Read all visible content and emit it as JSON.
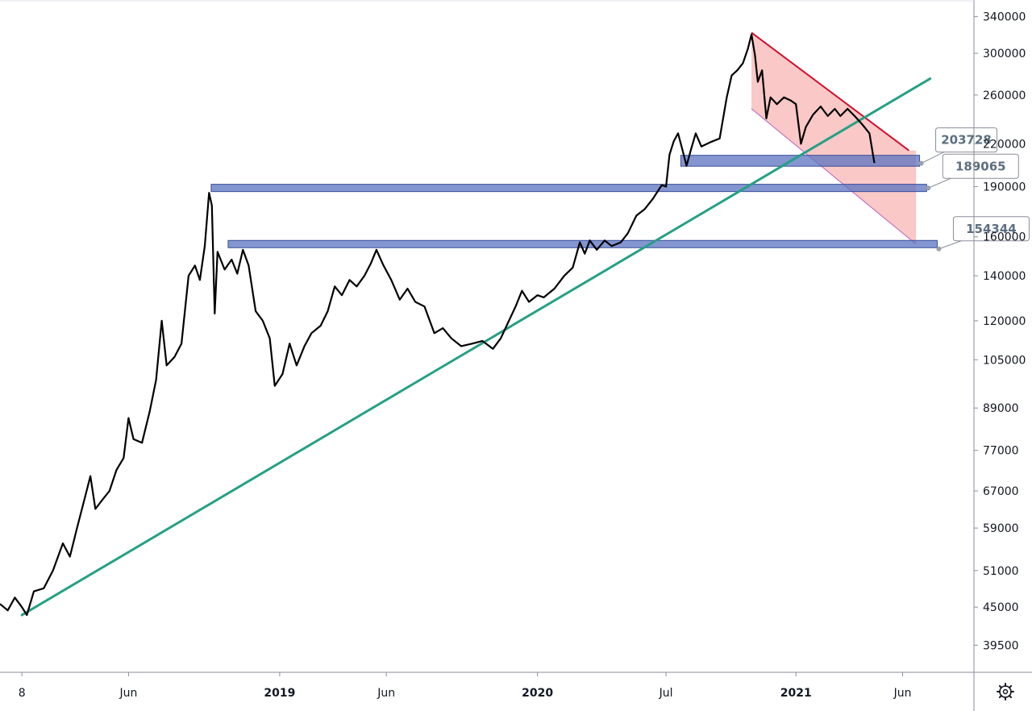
{
  "chart_data": {
    "type": "line",
    "y_scale": "log",
    "ylim": [
      36000,
      360000
    ],
    "y_ticks": [
      340000,
      300000,
      260000,
      220000,
      190000,
      160000,
      140000,
      120000,
      105000,
      89000,
      77000,
      67000,
      59000,
      51000,
      45000,
      39500
    ],
    "x_ticks": [
      {
        "label": "8",
        "date": "2018-01-01",
        "bold": false
      },
      {
        "label": "Jun",
        "date": "2018-06-01",
        "bold": false
      },
      {
        "label": "2019",
        "date": "2019-01-01",
        "bold": true
      },
      {
        "label": "Jun",
        "date": "2019-06-01",
        "bold": false
      },
      {
        "label": "2020",
        "date": "2020-01-01",
        "bold": true
      },
      {
        "label": "Jul",
        "date": "2020-07-01",
        "bold": false
      },
      {
        "label": "2021",
        "date": "2021-01-01",
        "bold": true
      },
      {
        "label": "Jun",
        "date": "2021-06-01",
        "bold": false
      }
    ],
    "grid": false,
    "series": [
      {
        "color": "#000000",
        "points": [
          [
            "2017-12-01",
            45500
          ],
          [
            "2017-12-12",
            44500
          ],
          [
            "2017-12-22",
            46500
          ],
          [
            "2018-01-01",
            45000
          ],
          [
            "2018-01-08",
            43800
          ],
          [
            "2018-01-18",
            47500
          ],
          [
            "2018-02-01",
            48000
          ],
          [
            "2018-02-14",
            51000
          ],
          [
            "2018-02-28",
            56000
          ],
          [
            "2018-03-10",
            53500
          ],
          [
            "2018-03-20",
            59000
          ],
          [
            "2018-04-01",
            66000
          ],
          [
            "2018-04-08",
            70500
          ],
          [
            "2018-04-15",
            63000
          ],
          [
            "2018-04-25",
            65000
          ],
          [
            "2018-05-05",
            67000
          ],
          [
            "2018-05-15",
            72000
          ],
          [
            "2018-05-25",
            75000
          ],
          [
            "2018-06-01",
            86000
          ],
          [
            "2018-06-08",
            80000
          ],
          [
            "2018-06-20",
            79000
          ],
          [
            "2018-07-01",
            88000
          ],
          [
            "2018-07-10",
            98000
          ],
          [
            "2018-07-18",
            120000
          ],
          [
            "2018-07-25",
            103000
          ],
          [
            "2018-08-05",
            106000
          ],
          [
            "2018-08-15",
            111000
          ],
          [
            "2018-08-25",
            140000
          ],
          [
            "2018-09-03",
            145000
          ],
          [
            "2018-09-10",
            138000
          ],
          [
            "2018-09-17",
            155000
          ],
          [
            "2018-09-23",
            186000
          ],
          [
            "2018-09-27",
            178000
          ],
          [
            "2018-10-01",
            123000
          ],
          [
            "2018-10-05",
            152000
          ],
          [
            "2018-10-15",
            143000
          ],
          [
            "2018-10-25",
            148000
          ],
          [
            "2018-11-02",
            141000
          ],
          [
            "2018-11-10",
            153000
          ],
          [
            "2018-11-18",
            145000
          ],
          [
            "2018-11-28",
            124000
          ],
          [
            "2018-12-08",
            120000
          ],
          [
            "2018-12-18",
            113000
          ],
          [
            "2018-12-25",
            96000
          ],
          [
            "2019-01-05",
            100000
          ],
          [
            "2019-01-15",
            111000
          ],
          [
            "2019-01-25",
            103000
          ],
          [
            "2019-02-05",
            110000
          ],
          [
            "2019-02-15",
            115000
          ],
          [
            "2019-02-28",
            118000
          ],
          [
            "2019-03-10",
            124000
          ],
          [
            "2019-03-20",
            135000
          ],
          [
            "2019-03-30",
            131000
          ],
          [
            "2019-04-10",
            138000
          ],
          [
            "2019-04-20",
            135000
          ],
          [
            "2019-05-01",
            140000
          ],
          [
            "2019-05-10",
            146000
          ],
          [
            "2019-05-18",
            153000
          ],
          [
            "2019-05-28",
            145000
          ],
          [
            "2019-06-08",
            138000
          ],
          [
            "2019-06-20",
            129000
          ],
          [
            "2019-07-01",
            134000
          ],
          [
            "2019-07-12",
            128000
          ],
          [
            "2019-07-25",
            126000
          ],
          [
            "2019-08-08",
            115000
          ],
          [
            "2019-08-20",
            117000
          ],
          [
            "2019-09-01",
            113000
          ],
          [
            "2019-09-15",
            110000
          ],
          [
            "2019-10-01",
            111000
          ],
          [
            "2019-10-15",
            112000
          ],
          [
            "2019-10-30",
            109000
          ],
          [
            "2019-11-10",
            113000
          ],
          [
            "2019-11-20",
            119000
          ],
          [
            "2019-12-01",
            126000
          ],
          [
            "2019-12-10",
            133000
          ],
          [
            "2019-12-20",
            128000
          ],
          [
            "2020-01-01",
            131000
          ],
          [
            "2020-01-10",
            130000
          ],
          [
            "2020-01-25",
            134000
          ],
          [
            "2020-02-08",
            140000
          ],
          [
            "2020-02-20",
            144000
          ],
          [
            "2020-03-01",
            157000
          ],
          [
            "2020-03-08",
            151000
          ],
          [
            "2020-03-15",
            158000
          ],
          [
            "2020-03-25",
            153000
          ],
          [
            "2020-04-05",
            158000
          ],
          [
            "2020-04-15",
            155000
          ],
          [
            "2020-04-28",
            157000
          ],
          [
            "2020-05-08",
            162000
          ],
          [
            "2020-05-20",
            172000
          ],
          [
            "2020-06-01",
            176000
          ],
          [
            "2020-06-12",
            182000
          ],
          [
            "2020-06-25",
            191000
          ],
          [
            "2020-07-01",
            190000
          ],
          [
            "2020-07-06",
            212000
          ],
          [
            "2020-07-12",
            222000
          ],
          [
            "2020-07-18",
            228000
          ],
          [
            "2020-07-24",
            216000
          ],
          [
            "2020-07-30",
            204000
          ],
          [
            "2020-08-05",
            215000
          ],
          [
            "2020-08-12",
            228000
          ],
          [
            "2020-08-20",
            218000
          ],
          [
            "2020-09-01",
            221000
          ],
          [
            "2020-09-15",
            224000
          ],
          [
            "2020-09-25",
            258000
          ],
          [
            "2020-10-02",
            278000
          ],
          [
            "2020-10-10",
            283000
          ],
          [
            "2020-10-18",
            290000
          ],
          [
            "2020-10-25",
            305000
          ],
          [
            "2020-10-30",
            320000
          ],
          [
            "2020-11-04",
            298000
          ],
          [
            "2020-11-08",
            272000
          ],
          [
            "2020-11-14",
            283000
          ],
          [
            "2020-11-20",
            240000
          ],
          [
            "2020-11-26",
            258000
          ],
          [
            "2020-12-05",
            252000
          ],
          [
            "2020-12-15",
            258000
          ],
          [
            "2020-12-25",
            255000
          ],
          [
            "2021-01-01",
            252000
          ],
          [
            "2021-01-08",
            220000
          ],
          [
            "2021-01-15",
            233000
          ],
          [
            "2021-01-25",
            243000
          ],
          [
            "2021-02-05",
            250000
          ],
          [
            "2021-02-15",
            242000
          ],
          [
            "2021-02-25",
            248000
          ],
          [
            "2021-03-05",
            242000
          ],
          [
            "2021-03-15",
            248000
          ],
          [
            "2021-03-25",
            242000
          ],
          [
            "2021-04-05",
            235000
          ],
          [
            "2021-04-15",
            228000
          ],
          [
            "2021-04-22",
            206000
          ]
        ]
      }
    ],
    "trendline": {
      "color": "#26a085",
      "from": [
        "2018-01-01",
        43800
      ],
      "to": [
        "2021-07-10",
        275000
      ]
    },
    "channel": {
      "color": "#ef5350",
      "upper": {
        "from": [
          "2020-10-30",
          322000
        ],
        "to": [
          "2021-06-10",
          215000
        ]
      },
      "lower": {
        "from": [
          "2020-10-30",
          248000
        ],
        "to": [
          "2021-06-20",
          156000
        ]
      }
    },
    "zones": [
      {
        "from": "2020-07-22",
        "to": "2021-06-25",
        "top": 211500,
        "bottom": 203728,
        "label": "203728"
      },
      {
        "from": "2018-09-26",
        "to": "2021-07-05",
        "top": 191500,
        "bottom": 189065,
        "label": "189065"
      },
      {
        "from": "2018-10-20",
        "to": "2021-07-20",
        "top": 158000,
        "bottom": 154344,
        "label": "154344"
      }
    ]
  },
  "settings_icon": "gear-icon"
}
